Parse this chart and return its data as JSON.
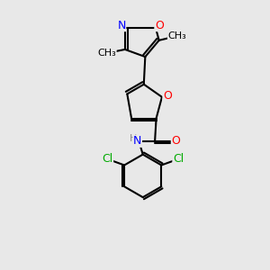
{
  "bg_color": "#e8e8e8",
  "bond_color": "#000000",
  "bond_width": 1.5,
  "atom_colors": {
    "O": "#ff0000",
    "N": "#0000ff",
    "Cl": "#00aa00",
    "C": "#000000",
    "H": "#888888"
  },
  "font_size": 8.5,
  "xlim": [
    0,
    10
  ],
  "ylim": [
    0,
    10
  ]
}
